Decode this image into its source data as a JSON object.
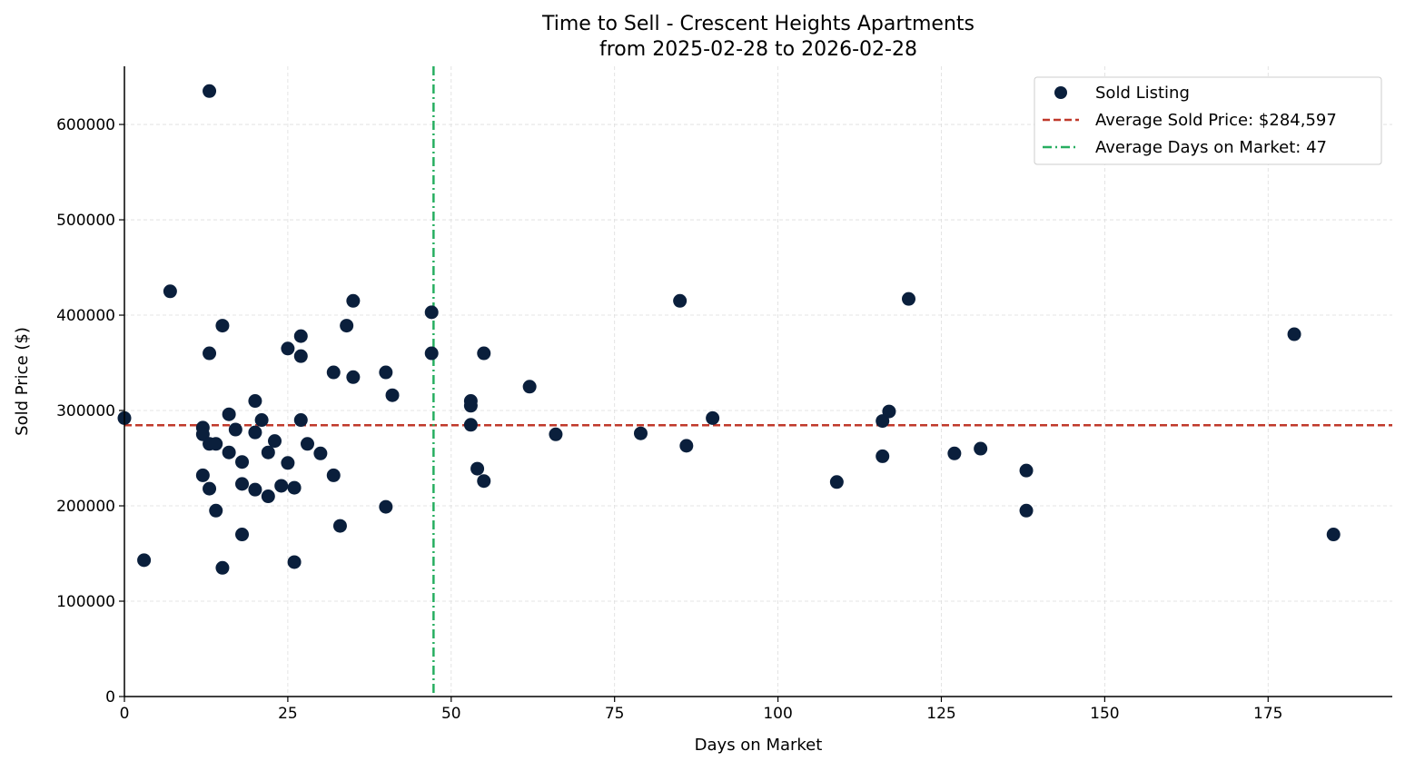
{
  "chart_data": {
    "type": "scatter",
    "title": "Time to Sell - Crescent Heights Apartments",
    "subtitle": "from 2025-02-28 to 2026-02-28",
    "xlabel": "Days on Market",
    "ylabel": "Sold Price ($)",
    "xlim": [
      0,
      194
    ],
    "ylim": [
      0,
      661000
    ],
    "xticks": [
      0,
      25,
      50,
      75,
      100,
      125,
      150,
      175
    ],
    "yticks": [
      0,
      100000,
      200000,
      300000,
      400000,
      500000,
      600000
    ],
    "grid": true,
    "legend_position": "top-right",
    "colors": {
      "points": "#0a1f3c",
      "avg_price": "#c0392b",
      "avg_days": "#27ae60"
    },
    "series": [
      {
        "name": "Sold Listing",
        "points": [
          [
            0,
            292000
          ],
          [
            3,
            143000
          ],
          [
            7,
            425000
          ],
          [
            13,
            635000
          ],
          [
            12,
            282000
          ],
          [
            12,
            275000
          ],
          [
            13,
            360000
          ],
          [
            15,
            389000
          ],
          [
            12,
            232000
          ],
          [
            13,
            265000
          ],
          [
            14,
            265000
          ],
          [
            13,
            218000
          ],
          [
            14,
            195000
          ],
          [
            15,
            135000
          ],
          [
            16,
            296000
          ],
          [
            16,
            256000
          ],
          [
            17,
            280000
          ],
          [
            18,
            246000
          ],
          [
            18,
            223000
          ],
          [
            18,
            170000
          ],
          [
            20,
            310000
          ],
          [
            20,
            277000
          ],
          [
            20,
            217000
          ],
          [
            21,
            290000
          ],
          [
            22,
            256000
          ],
          [
            22,
            210000
          ],
          [
            23,
            268000
          ],
          [
            24,
            221000
          ],
          [
            25,
            365000
          ],
          [
            25,
            245000
          ],
          [
            26,
            219000
          ],
          [
            26,
            141000
          ],
          [
            27,
            378000
          ],
          [
            27,
            357000
          ],
          [
            27,
            290000
          ],
          [
            28,
            265000
          ],
          [
            30,
            255000
          ],
          [
            32,
            340000
          ],
          [
            32,
            232000
          ],
          [
            33,
            179000
          ],
          [
            34,
            389000
          ],
          [
            35,
            415000
          ],
          [
            35,
            335000
          ],
          [
            40,
            340000
          ],
          [
            40,
            199000
          ],
          [
            41,
            316000
          ],
          [
            47,
            403000
          ],
          [
            47,
            360000
          ],
          [
            53,
            310000
          ],
          [
            53,
            305000
          ],
          [
            53,
            285000
          ],
          [
            54,
            239000
          ],
          [
            55,
            360000
          ],
          [
            55,
            226000
          ],
          [
            62,
            325000
          ],
          [
            66,
            275000
          ],
          [
            79,
            276000
          ],
          [
            85,
            415000
          ],
          [
            86,
            263000
          ],
          [
            90,
            292000
          ],
          [
            109,
            225000
          ],
          [
            116,
            289000
          ],
          [
            116,
            252000
          ],
          [
            117,
            299000
          ],
          [
            120,
            417000
          ],
          [
            127,
            255000
          ],
          [
            131,
            260000
          ],
          [
            138,
            237000
          ],
          [
            138,
            195000
          ],
          [
            179,
            380000
          ],
          [
            185,
            170000
          ]
        ]
      }
    ],
    "reference_lines": [
      {
        "name": "Average Sold Price: $284,597",
        "orientation": "horizontal",
        "value": 284597,
        "style": "dashed"
      },
      {
        "name": "Average Days on Market: 47",
        "orientation": "vertical",
        "value": 47.3,
        "style": "dashdot"
      }
    ]
  }
}
